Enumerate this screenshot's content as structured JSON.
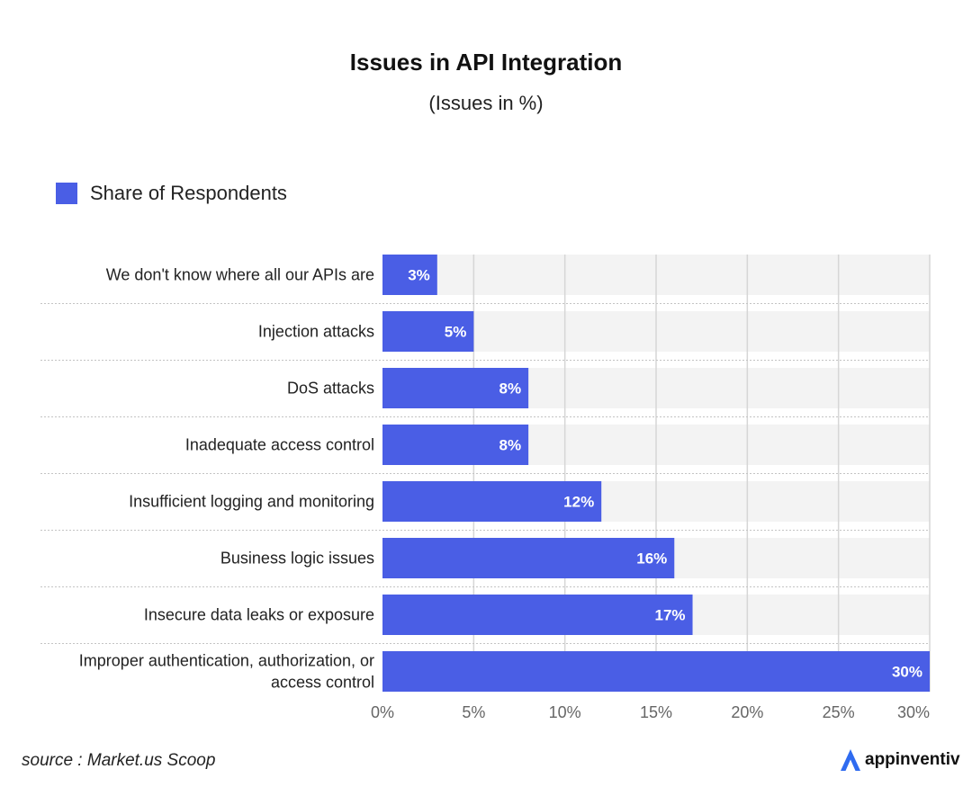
{
  "chart_data": {
    "type": "bar",
    "orientation": "horizontal",
    "title": "Issues in API Integration",
    "subtitle": "(Issues in %)",
    "categories": [
      [
        "We don't know where all our APIs are"
      ],
      [
        "Injection attacks"
      ],
      [
        "DoS attacks"
      ],
      [
        "Inadequate access control"
      ],
      [
        "Insufficient logging and monitoring"
      ],
      [
        "Business logic issues"
      ],
      [
        "Insecure data leaks or exposure"
      ],
      [
        "Improper authentication, authorization, or",
        "access control"
      ]
    ],
    "series": [
      {
        "name": "Share of Respondents",
        "values": [
          3,
          5,
          8,
          8,
          12,
          16,
          17,
          30
        ],
        "labels": [
          "3%",
          "5%",
          "8%",
          "8%",
          "12%",
          "16%",
          "17%",
          "30%"
        ]
      }
    ],
    "xlim": [
      0,
      30
    ],
    "xticks": [
      0,
      5,
      10,
      15,
      20,
      25,
      30
    ],
    "xtick_labels": [
      "0%",
      "5%",
      "10%",
      "15%",
      "20%",
      "25%",
      "30%"
    ],
    "grid": true,
    "legend_position": "top-left",
    "colors": {
      "bar": "#4a5ee5",
      "band": "#f3f3f3",
      "grid": "#d6d6d6"
    }
  },
  "footer": {
    "source": "source : Market.us Scoop",
    "brand": "appinventiv",
    "brand_icon": "appinventiv-logo-icon"
  }
}
